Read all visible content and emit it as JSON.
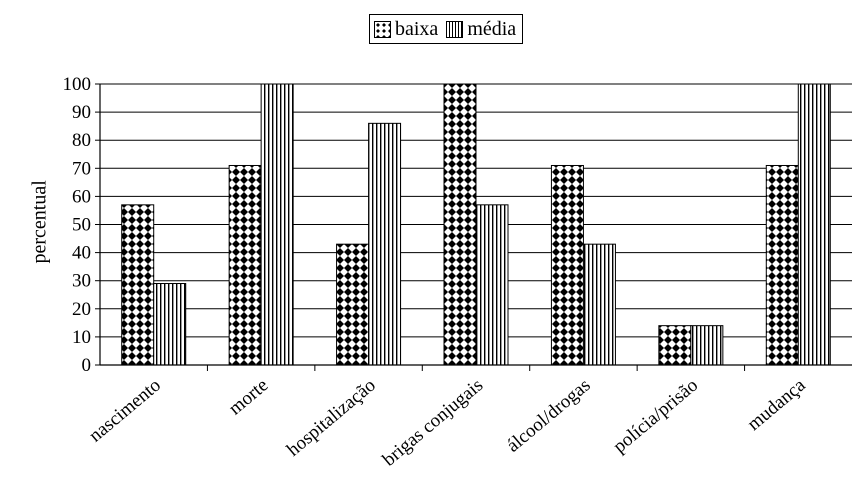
{
  "chart_data": {
    "type": "bar",
    "title": "",
    "xlabel": "",
    "ylabel": "percentual",
    "ylim": [
      0,
      100
    ],
    "yticks": [
      0,
      10,
      20,
      30,
      40,
      50,
      60,
      70,
      80,
      90,
      100
    ],
    "grid": true,
    "legend_position": "top-center",
    "categories": [
      "nascimento",
      "morte",
      "hospitalização",
      "brigas conjugais",
      "álcool/drogas",
      "polícia/prisão",
      "mudança"
    ],
    "series": [
      {
        "name": "baixa",
        "pattern": "diamond-checker",
        "values": [
          57,
          71,
          43,
          100,
          71,
          14,
          71
        ]
      },
      {
        "name": "média",
        "pattern": "vertical-stripes",
        "values": [
          29,
          100,
          86,
          57,
          43,
          14,
          100
        ]
      }
    ]
  }
}
